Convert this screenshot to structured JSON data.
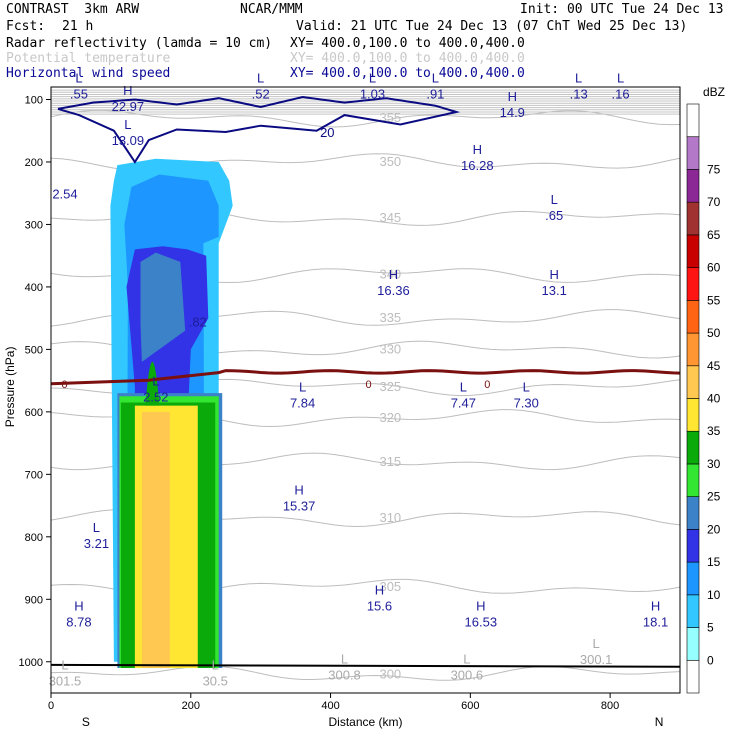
{
  "header": {
    "model": "CONTRAST  3km ARW",
    "org": "NCAR/MMM",
    "init": "Init: 00 UTC Tue 24 Dec 13",
    "fcst_label": "Fcst:",
    "fcst_value": "21 h",
    "valid": "Valid: 21 UTC Tue 24 Dec 13 (07 ChT Wed 25 Dec 13)",
    "fields": [
      {
        "name": "Radar reflectivity (lamda = 10 cm)",
        "xy": "XY= 400.0,100.0 to 400.0,400.0",
        "color": "#000000"
      },
      {
        "name": "Potential temperature",
        "xy": "XY= 400.0,100.0 to 400.0,400.0",
        "color": "#c8c8c8"
      },
      {
        "name": "Horizontal wind speed",
        "xy": "XY= 400.0,100.0 to 400.0,400.0",
        "color": "#0a0a96"
      }
    ]
  },
  "chart_data": {
    "type": "cross-section",
    "xlabel": "Distance (km)",
    "ylabel": "Pressure (hPa)",
    "x_range": [
      0,
      900
    ],
    "y_range": [
      1050,
      80
    ],
    "x_ticks": [
      0,
      200,
      400,
      600,
      800
    ],
    "y_ticks": [
      100,
      200,
      300,
      400,
      500,
      600,
      700,
      800,
      900,
      1000
    ],
    "x_end_labels": {
      "left": "S",
      "right": "N"
    },
    "colorbar": {
      "unit": "dBZ",
      "levels": [
        0,
        5,
        10,
        15,
        20,
        25,
        30,
        35,
        40,
        45,
        50,
        55,
        60,
        65,
        70,
        75
      ],
      "colors": [
        "#ffffff",
        "#96ffff",
        "#32c8ff",
        "#1e96ff",
        "#3232e6",
        "#3c82c8",
        "#32e632",
        "#0aaa0a",
        "#ffe632",
        "#ffc850",
        "#ff9632",
        "#ff6414",
        "#ff1414",
        "#c80000",
        "#a03232",
        "#8c2896",
        "#b478c8",
        "#ffffff"
      ]
    },
    "reflectivity_shading": [
      {
        "dbz": 5,
        "x": [
          85,
          90,
          95,
          150,
          240,
          255,
          260,
          240,
          240,
          225,
          100,
          90
        ],
        "p": [
          270,
          230,
          205,
          195,
          200,
          230,
          270,
          330,
          1000,
          1000,
          1000,
          1000
        ]
      },
      {
        "dbz": 10,
        "x": [
          105,
          115,
          155,
          225,
          240,
          240,
          218,
          220,
          108,
          110
        ],
        "p": [
          300,
          240,
          220,
          230,
          270,
          320,
          330,
          1000,
          1000,
          400
        ]
      },
      {
        "dbz": 15,
        "x": [
          108,
          120,
          160,
          195,
          222,
          225,
          200,
          180,
          118,
          120
        ],
        "p": [
          400,
          340,
          335,
          340,
          350,
          450,
          500,
          1000,
          1000,
          560
        ]
      },
      {
        "dbz": 20,
        "x": [
          128,
          150,
          185,
          192,
          130,
          128
        ],
        "p": [
          360,
          345,
          360,
          470,
          520,
          460
        ]
      }
    ],
    "wind_speed_max_contour": 20,
    "potential_temperature_contours": [
      300,
      305,
      310,
      315,
      320,
      325,
      330,
      335,
      340,
      345,
      350,
      355
    ],
    "freezing_level_label": "0",
    "annotations": [
      {
        "type": "L",
        "value": ".55",
        "x": 40,
        "p": 95,
        "color": "navy"
      },
      {
        "type": "H",
        "value": "22.97",
        "x": 110,
        "p": 115,
        "color": "navy"
      },
      {
        "type": "L",
        "value": ".52",
        "x": 300,
        "p": 95,
        "color": "navy"
      },
      {
        "type": "L",
        "value": "1.03",
        "x": 460,
        "p": 95,
        "color": "navy"
      },
      {
        "type": "L",
        "value": ".91",
        "x": 550,
        "p": 95,
        "color": "navy"
      },
      {
        "type": "L",
        "value": ".13",
        "x": 755,
        "p": 95,
        "color": "navy"
      },
      {
        "type": "L",
        "value": ".16",
        "x": 815,
        "p": 95,
        "color": "navy"
      },
      {
        "type": "H",
        "value": "14.9",
        "x": 660,
        "p": 125,
        "color": "navy"
      },
      {
        "type": "L",
        "value": "13.09",
        "x": 110,
        "p": 170,
        "color": "navy"
      },
      {
        "type": "H",
        "value": "16.28",
        "x": 610,
        "p": 210,
        "color": "navy"
      },
      {
        "type": "",
        "value": "2.54",
        "x": 20,
        "p": 255,
        "color": "navy"
      },
      {
        "type": "L",
        "value": ".65",
        "x": 720,
        "p": 290,
        "color": "navy"
      },
      {
        "type": "H",
        "value": "16.36",
        "x": 490,
        "p": 410,
        "color": "navy"
      },
      {
        "type": "H",
        "value": "13.1",
        "x": 720,
        "p": 410,
        "color": "navy"
      },
      {
        "type": "",
        "value": ".82",
        "x": 210,
        "p": 460,
        "color": "navy"
      },
      {
        "type": "L",
        "value": "2.52",
        "x": 150,
        "p": 580,
        "color": "navy"
      },
      {
        "type": "L",
        "value": "7.84",
        "x": 360,
        "p": 590,
        "color": "navy"
      },
      {
        "type": "L",
        "value": "7.47",
        "x": 590,
        "p": 590,
        "color": "navy"
      },
      {
        "type": "L",
        "value": "7.30",
        "x": 680,
        "p": 590,
        "color": "navy"
      },
      {
        "type": "H",
        "value": "15.37",
        "x": 355,
        "p": 755,
        "color": "navy"
      },
      {
        "type": "L",
        "value": "3.21",
        "x": 65,
        "p": 815,
        "color": "navy"
      },
      {
        "type": "H",
        "value": "15.6",
        "x": 470,
        "p": 915,
        "color": "navy"
      },
      {
        "type": "H",
        "value": "8.78",
        "x": 40,
        "p": 940,
        "color": "navy"
      },
      {
        "type": "H",
        "value": "16.53",
        "x": 615,
        "p": 940,
        "color": "navy"
      },
      {
        "type": "H",
        "value": "18.1",
        "x": 865,
        "p": 940,
        "color": "navy"
      },
      {
        "type": "L",
        "value": "301.5",
        "x": 20,
        "p": 1035,
        "color": "gray"
      },
      {
        "type": "L",
        "value": "30.5",
        "x": 235,
        "p": 1035,
        "color": "gray"
      },
      {
        "type": "L",
        "value": "300.8",
        "x": 420,
        "p": 1025,
        "color": "gray"
      },
      {
        "type": "L",
        "value": "300.6",
        "x": 595,
        "p": 1025,
        "color": "gray"
      },
      {
        "type": "L",
        "value": "300.1",
        "x": 780,
        "p": 1000,
        "color": "gray"
      }
    ]
  }
}
